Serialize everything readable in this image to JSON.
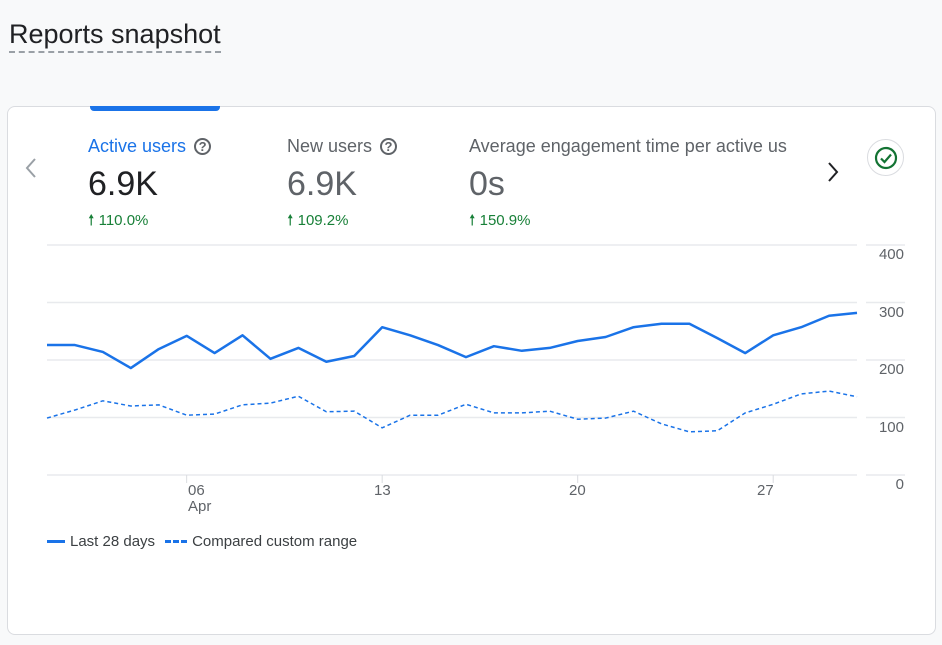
{
  "page_title": "Reports snapshot",
  "metrics": [
    {
      "label": "Active users",
      "value": "6.9K",
      "change": "110.0%",
      "active": true
    },
    {
      "label": "New users",
      "value": "6.9K",
      "change": "109.2%"
    },
    {
      "label": "Average engagement time per active us",
      "value": "0s",
      "change": "150.9%"
    }
  ],
  "icons": {
    "prev": "chevron-left-icon",
    "next": "chevron-right-icon",
    "help": "help-circle-icon",
    "up": "arrow-up-icon",
    "status": "check-circle-icon"
  },
  "colors": {
    "accent": "#1a73e8",
    "positive": "#188038"
  },
  "chart_data": {
    "type": "line",
    "x": [
      "Apr 1",
      "Apr 2",
      "Apr 3",
      "Apr 4",
      "Apr 5",
      "Apr 6",
      "Apr 7",
      "Apr 8",
      "Apr 9",
      "Apr 10",
      "Apr 11",
      "Apr 12",
      "Apr 13",
      "Apr 14",
      "Apr 15",
      "Apr 16",
      "Apr 17",
      "Apr 18",
      "Apr 19",
      "Apr 20",
      "Apr 21",
      "Apr 22",
      "Apr 23",
      "Apr 24",
      "Apr 25",
      "Apr 26",
      "Apr 27",
      "Apr 28",
      "Apr 29",
      "Apr 30"
    ],
    "x_ticks": [
      {
        "index": 5,
        "label": "06",
        "sub": "Apr"
      },
      {
        "index": 12,
        "label": "13"
      },
      {
        "index": 19,
        "label": "20"
      },
      {
        "index": 26,
        "label": "27"
      }
    ],
    "y_ticks": [
      "0",
      "100",
      "200",
      "300",
      "400"
    ],
    "ylim": [
      0,
      400
    ],
    "series": [
      {
        "name": "Last 28 days",
        "style": "solid",
        "values": [
          226,
          226,
          214,
          186,
          219,
          242,
          212,
          243,
          202,
          221,
          197,
          207,
          257,
          243,
          226,
          205,
          224,
          216,
          221,
          233,
          240,
          257,
          263,
          263,
          238,
          212,
          243,
          257,
          277,
          282
        ]
      },
      {
        "name": "Compared custom range",
        "style": "dashed",
        "values": [
          99,
          113,
          129,
          120,
          122,
          104,
          106,
          122,
          125,
          137,
          110,
          111,
          82,
          104,
          104,
          123,
          108,
          108,
          111,
          97,
          99,
          111,
          89,
          75,
          77,
          108,
          123,
          141,
          146,
          136
        ]
      }
    ],
    "grid": true,
    "legend": "bottom-left"
  }
}
